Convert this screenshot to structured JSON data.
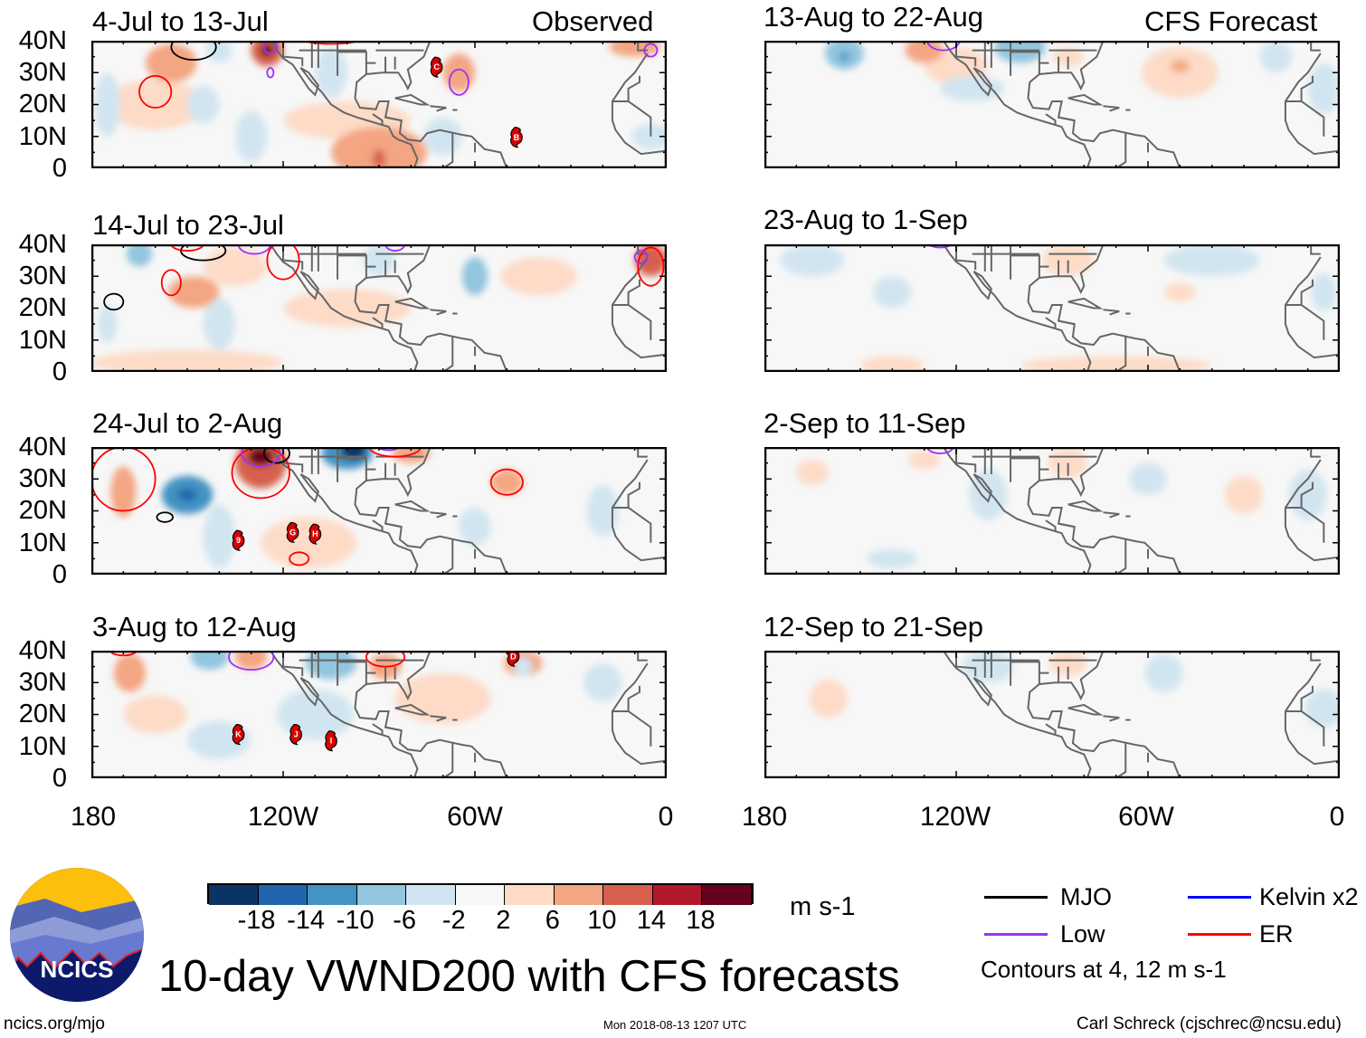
{
  "observed_label": "Observed",
  "forecast_label": "CFS Forecast",
  "panels_left": [
    {
      "title": "4-Jul to 13-Jul",
      "storms": [
        "C",
        "B"
      ]
    },
    {
      "title": "14-Jul to 23-Jul",
      "storms": []
    },
    {
      "title": "24-Jul to 2-Aug",
      "storms": [
        "9",
        "G",
        "H"
      ]
    },
    {
      "title": "3-Aug to 12-Aug",
      "storms": [
        "D",
        "K",
        "J",
        "I"
      ]
    }
  ],
  "panels_right": [
    {
      "title": "13-Aug to 22-Aug"
    },
    {
      "title": "23-Aug to 1-Sep"
    },
    {
      "title": "2-Sep to 11-Sep"
    },
    {
      "title": "12-Sep to 21-Sep"
    }
  ],
  "lat_labels": [
    "40N",
    "30N",
    "20N",
    "10N",
    "0"
  ],
  "lon_labels": [
    "180",
    "120W",
    "60W",
    "0"
  ],
  "colorbar": {
    "colors": [
      "#0b3466",
      "#2166ac",
      "#4393c3",
      "#92c5de",
      "#d1e5f0",
      "#f7f7f7",
      "#fddbc7",
      "#f4a582",
      "#d6604d",
      "#b2182b",
      "#67001f"
    ],
    "labels": [
      "-18",
      "-14",
      "-10",
      "-6",
      "-2",
      "2",
      "6",
      "10",
      "14",
      "18"
    ],
    "units": "m s-1"
  },
  "legend": {
    "items": [
      {
        "label": "MJO",
        "color": "#000000"
      },
      {
        "label": "Kelvin x2",
        "color": "#0000ff"
      },
      {
        "label": "Low",
        "color": "#9b30ff"
      },
      {
        "label": "ER",
        "color": "#ff0000"
      }
    ],
    "note": "Contours at 4, 12 m s-1"
  },
  "logo_text": "NCICS",
  "main_title": "10-day VWND200 with CFS forecasts",
  "footer": {
    "left": "ncics.org/mjo",
    "center": "Mon 2018-08-13 1207 UTC",
    "right": "Carl Schreck (cjschrec@ncsu.edu)"
  }
}
